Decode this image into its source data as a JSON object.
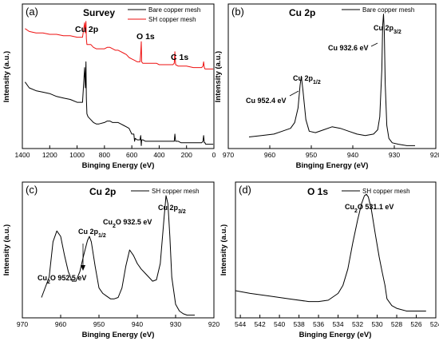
{
  "chart_data": [
    {
      "panel": "(a)",
      "type": "line",
      "title": "Survey",
      "xlabel": "Binging Energy (eV)",
      "ylabel": "Intensity (a.u.)",
      "xlim": [
        1400,
        0
      ],
      "xticks": [
        "1400",
        "1200",
        "1000",
        "800",
        "600",
        "400",
        "200",
        "0"
      ],
      "legend_position": "top-right",
      "annotations": [
        "Cu 2p",
        "O 1s",
        "C 1s"
      ],
      "series": [
        {
          "name": "Bare copper mesh",
          "color": "#000000",
          "x": [
            1380,
            1350,
            1300,
            1250,
            1200,
            1150,
            1100,
            1050,
            1000,
            960,
            945,
            940,
            935,
            932,
            928,
            920,
            900,
            880,
            860,
            840,
            800,
            780,
            760,
            740,
            720,
            700,
            680,
            660,
            640,
            620,
            600,
            585,
            580,
            575,
            560,
            540,
            535,
            531,
            528,
            520,
            500,
            480,
            450,
            420,
            400,
            380,
            350,
            320,
            300,
            290,
            285,
            280,
            260,
            240,
            200,
            150,
            120,
            100,
            90,
            80,
            75,
            70,
            65,
            60,
            40,
            20,
            5
          ],
          "y": [
            0.46,
            0.42,
            0.4,
            0.39,
            0.38,
            0.36,
            0.35,
            0.34,
            0.32,
            0.32,
            0.56,
            0.42,
            0.6,
            0.35,
            0.24,
            0.22,
            0.2,
            0.18,
            0.17,
            0.17,
            0.18,
            0.19,
            0.19,
            0.18,
            0.18,
            0.18,
            0.17,
            0.16,
            0.15,
            0.14,
            0.1,
            0.1,
            0.05,
            0.07,
            0.06,
            0.06,
            0.09,
            0.02,
            0.06,
            0.06,
            0.05,
            0.05,
            0.05,
            0.05,
            0.05,
            0.05,
            0.05,
            0.05,
            0.05,
            0.05,
            0.1,
            0.05,
            0.05,
            0.04,
            0.04,
            0.04,
            0.04,
            0.04,
            0.04,
            0.05,
            0.09,
            0.04,
            0.04,
            0.03,
            0.03,
            0.03,
            0.03
          ]
        },
        {
          "name": "SH copper mesh",
          "color": "#ee1111",
          "x": [
            1380,
            1350,
            1300,
            1250,
            1200,
            1150,
            1100,
            1050,
            1000,
            960,
            945,
            940,
            935,
            932,
            928,
            920,
            900,
            880,
            860,
            840,
            800,
            780,
            760,
            740,
            720,
            700,
            680,
            660,
            640,
            620,
            600,
            580,
            560,
            540,
            535,
            531,
            528,
            520,
            500,
            480,
            450,
            420,
            400,
            380,
            350,
            320,
            300,
            290,
            285,
            280,
            260,
            240,
            200,
            150,
            120,
            100,
            90,
            80,
            75,
            70,
            65,
            60,
            40,
            20,
            5
          ],
          "y": [
            0.83,
            0.81,
            0.8,
            0.8,
            0.79,
            0.79,
            0.78,
            0.78,
            0.77,
            0.77,
            0.87,
            0.8,
            0.88,
            0.76,
            0.72,
            0.72,
            0.72,
            0.7,
            0.69,
            0.69,
            0.69,
            0.7,
            0.7,
            0.69,
            0.68,
            0.68,
            0.67,
            0.66,
            0.65,
            0.63,
            0.62,
            0.61,
            0.6,
            0.6,
            0.66,
            0.74,
            0.6,
            0.59,
            0.59,
            0.59,
            0.59,
            0.59,
            0.58,
            0.58,
            0.58,
            0.58,
            0.58,
            0.59,
            0.67,
            0.58,
            0.57,
            0.57,
            0.57,
            0.56,
            0.56,
            0.56,
            0.56,
            0.57,
            0.6,
            0.56,
            0.55,
            0.55,
            0.55,
            0.55,
            0.55
          ]
        }
      ]
    },
    {
      "panel": "(b)",
      "type": "line",
      "title": "Cu 2p",
      "xlabel": "Binging Energy (eV)",
      "ylabel": "Intensity (a.u.)",
      "xlim": [
        970,
        920
      ],
      "xticks": [
        "970",
        "960",
        "950",
        "940",
        "930",
        "920"
      ],
      "legend_position": "top-right",
      "series": [
        {
          "name": "Bare copper mesh",
          "color": "#000000",
          "x": [
            965,
            962,
            959,
            957,
            955,
            954,
            953.2,
            952.7,
            952.4,
            952.0,
            951.3,
            950.5,
            949,
            947,
            945,
            943,
            941,
            939,
            937,
            935,
            934,
            933.5,
            933.0,
            932.8,
            932.6,
            932.4,
            932.2,
            931.8,
            931.3,
            930.5,
            929,
            927,
            925
          ],
          "y": [
            0.08,
            0.09,
            0.1,
            0.12,
            0.14,
            0.18,
            0.28,
            0.44,
            0.5,
            0.4,
            0.2,
            0.12,
            0.11,
            0.13,
            0.15,
            0.14,
            0.12,
            0.1,
            0.09,
            0.1,
            0.13,
            0.22,
            0.55,
            0.85,
            0.93,
            0.8,
            0.45,
            0.16,
            0.07,
            0.04,
            0.03,
            0.02,
            0.02
          ]
        }
      ],
      "annotations": [
        "Cu 2p3/2",
        "Cu 932.6 eV",
        "Cu 2p1/2",
        "Cu 952.4 eV"
      ]
    },
    {
      "panel": "(c)",
      "type": "line",
      "title": "Cu 2p",
      "xlabel": "Binging Energy (eV)",
      "ylabel": "Intensity (a.u.)",
      "xlim": [
        970,
        920
      ],
      "xticks": [
        "970",
        "960",
        "950",
        "940",
        "930",
        "920"
      ],
      "legend_position": "top-right",
      "series": [
        {
          "name": "SH copper mesh",
          "color": "#000000",
          "x": [
            965,
            963,
            962,
            961,
            960,
            959,
            958,
            957,
            956,
            955,
            954,
            953,
            952.5,
            952,
            951,
            950,
            949,
            948,
            947,
            946,
            945,
            944,
            943,
            942,
            941,
            940,
            939,
            938,
            937,
            936,
            935,
            934,
            933,
            932.5,
            932,
            931.5,
            931,
            930,
            929,
            928,
            927,
            926,
            925
          ],
          "y": [
            0.15,
            0.3,
            0.56,
            0.64,
            0.6,
            0.46,
            0.34,
            0.27,
            0.27,
            0.34,
            0.46,
            0.57,
            0.6,
            0.56,
            0.38,
            0.22,
            0.18,
            0.16,
            0.14,
            0.14,
            0.15,
            0.22,
            0.38,
            0.5,
            0.46,
            0.4,
            0.36,
            0.33,
            0.3,
            0.27,
            0.28,
            0.4,
            0.74,
            0.9,
            0.84,
            0.6,
            0.3,
            0.1,
            0.05,
            0.03,
            0.02,
            0.02,
            0.02
          ]
        }
      ],
      "annotations": [
        "Cu 2p3/2",
        "Cu2O 932.5 eV",
        "Cu 2p1/2",
        "Cu2O 952.5 eV"
      ]
    },
    {
      "panel": "(d)",
      "type": "line",
      "title": "O 1s",
      "xlabel": "Binging Energy (eV)",
      "ylabel": "Intensity (a.u.)",
      "xlim": [
        544.5,
        524
      ],
      "xticks": [
        "544",
        "542",
        "540",
        "538",
        "536",
        "534",
        "532",
        "530",
        "528",
        "526",
        "524"
      ],
      "legend_position": "top-right",
      "series": [
        {
          "name": "SH copper mesh",
          "color": "#000000",
          "x": [
            544.5,
            543,
            541,
            539,
            537,
            536,
            535,
            534,
            533.5,
            533,
            532.5,
            532,
            531.6,
            531.3,
            531.1,
            530.9,
            530.6,
            530.2,
            529.8,
            529.5,
            529.2,
            529.0,
            528.5,
            528,
            527,
            526,
            525
          ],
          "y": [
            0.2,
            0.18,
            0.16,
            0.14,
            0.12,
            0.12,
            0.13,
            0.18,
            0.24,
            0.36,
            0.55,
            0.72,
            0.84,
            0.9,
            0.91,
            0.89,
            0.8,
            0.62,
            0.45,
            0.34,
            0.24,
            0.14,
            0.09,
            0.07,
            0.05,
            0.05,
            0.05
          ]
        }
      ],
      "annotations": [
        "Cu2O 531.1 eV"
      ]
    }
  ]
}
